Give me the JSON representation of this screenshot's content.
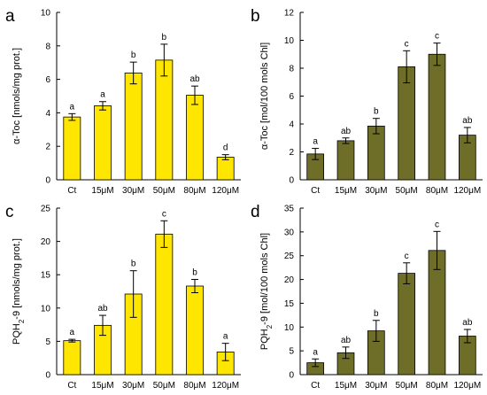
{
  "colors": {
    "yellow": "#ffe600",
    "olive": "#6e6e28",
    "bar_edge": "#000000"
  },
  "chart_data": [
    {
      "id": "a",
      "type": "bar",
      "panel_label": "a",
      "ylabel_html_parts": [
        "α-Toc [nmols/mg prot.]"
      ],
      "categories": [
        "Ct",
        "15μM",
        "30μM",
        "50μM",
        "80μM",
        "120μM"
      ],
      "values": [
        3.75,
        4.42,
        6.38,
        7.15,
        5.05,
        1.35
      ],
      "errors": [
        0.2,
        0.25,
        0.65,
        0.95,
        0.55,
        0.15
      ],
      "significance": [
        "a",
        "a",
        "b",
        "b",
        "ab",
        "d"
      ],
      "ylim": [
        0,
        10
      ],
      "yticks": [
        0,
        2,
        4,
        6,
        8,
        10
      ],
      "color": "yellow"
    },
    {
      "id": "b",
      "type": "bar",
      "panel_label": "b",
      "ylabel_html_parts": [
        "α-Toc [mol/100 mols Chl]"
      ],
      "categories": [
        "Ct",
        "15μM",
        "30μM",
        "50μM",
        "80μM",
        "120μM"
      ],
      "values": [
        1.85,
        2.8,
        3.85,
        8.1,
        9.0,
        3.2
      ],
      "errors": [
        0.4,
        0.2,
        0.55,
        1.15,
        0.8,
        0.55
      ],
      "significance": [
        "a",
        "ab",
        "b",
        "c",
        "c",
        "ab"
      ],
      "ylim": [
        0,
        12
      ],
      "yticks": [
        0,
        2,
        4,
        6,
        8,
        10,
        12
      ],
      "color": "olive"
    },
    {
      "id": "c",
      "type": "bar",
      "panel_label": "c",
      "ylabel_main": "PQH",
      "ylabel_sub": "2",
      "ylabel_rest": "-9 [nmols/mg prot.]",
      "categories": [
        "Ct",
        "15μM",
        "30μM",
        "50μM",
        "80μM",
        "120μM"
      ],
      "values": [
        5.1,
        7.4,
        12.1,
        21.1,
        13.3,
        3.4
      ],
      "errors": [
        0.2,
        1.5,
        3.5,
        2.0,
        1.0,
        1.3
      ],
      "significance": [
        "a",
        "ab",
        "b",
        "c",
        "b",
        "a"
      ],
      "ylim": [
        0,
        25
      ],
      "yticks": [
        0,
        5,
        10,
        15,
        20,
        25
      ],
      "color": "yellow"
    },
    {
      "id": "d",
      "type": "bar",
      "panel_label": "d",
      "ylabel_main": "PQH",
      "ylabel_sub": "2",
      "ylabel_rest": "-9 [mol/100 mols Chl]",
      "categories": [
        "Ct",
        "15μM",
        "30μM",
        "50μM",
        "80μM",
        "120μM"
      ],
      "values": [
        2.5,
        4.6,
        9.2,
        21.3,
        26.1,
        8.1
      ],
      "errors": [
        0.8,
        1.2,
        2.2,
        2.2,
        4.0,
        1.4
      ],
      "significance": [
        "a",
        "ab",
        "b",
        "c",
        "c",
        "ab"
      ],
      "ylim": [
        0,
        35
      ],
      "yticks": [
        0,
        5,
        10,
        15,
        20,
        25,
        30,
        35
      ],
      "color": "olive"
    }
  ]
}
